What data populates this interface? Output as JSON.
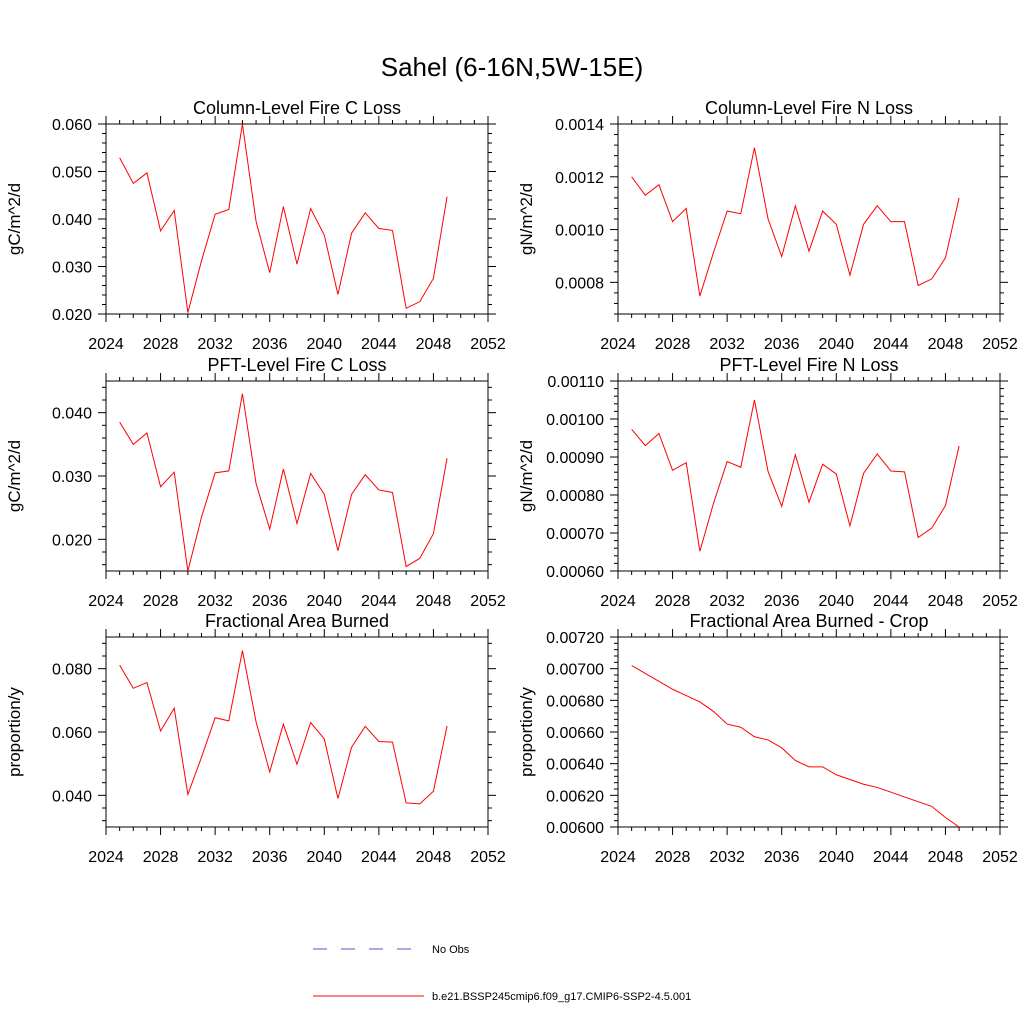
{
  "figure": {
    "title": "Sahel (6-16N,5W-15E)"
  },
  "legend": {
    "items": [
      {
        "label": "No Obs",
        "style": "dashed",
        "color": "#5555cc"
      },
      {
        "label": "b.e21.BSSP245cmip6.f09_g17.CMIP6-SSP2-4.5.001",
        "style": "solid",
        "color": "#ff0000"
      }
    ]
  },
  "chart_data": [
    {
      "type": "line",
      "title": "Column-Level Fire C Loss",
      "xlabel": "",
      "ylabel": "gC/m^2/d",
      "xlim": [
        2024,
        2052
      ],
      "ylim": [
        0.02,
        0.06
      ],
      "xticks": [
        "2024",
        "2028",
        "2032",
        "2036",
        "2040",
        "2044",
        "2048",
        "2052"
      ],
      "yticks": [
        {
          "value": 0.02,
          "label": "0.020"
        },
        {
          "value": 0.03,
          "label": "0.030"
        },
        {
          "value": 0.04,
          "label": "0.040"
        },
        {
          "value": 0.05,
          "label": "0.050"
        },
        {
          "value": 0.06,
          "label": "0.060"
        }
      ],
      "x": [
        2025,
        2026,
        2027,
        2028,
        2029,
        2030,
        2031,
        2032,
        2033,
        2034,
        2035,
        2036,
        2037,
        2038,
        2039,
        2040,
        2041,
        2042,
        2043,
        2044,
        2045,
        2046,
        2047,
        2048,
        2049
      ],
      "series": [
        {
          "color": "#ff0000",
          "values": [
            0.0529,
            0.0475,
            0.0497,
            0.0375,
            0.0418,
            0.0203,
            0.0312,
            0.041,
            0.042,
            0.06,
            0.0395,
            0.0287,
            0.0426,
            0.0305,
            0.0422,
            0.0366,
            0.0241,
            0.037,
            0.0413,
            0.038,
            0.0376,
            0.0212,
            0.0226,
            0.0275,
            0.0447
          ]
        }
      ]
    },
    {
      "type": "line",
      "title": "Column-Level Fire N Loss",
      "xlabel": "",
      "ylabel": "gN/m^2/d",
      "xlim": [
        2024,
        2052
      ],
      "ylim": [
        0.00068,
        0.0014
      ],
      "xticks": [
        "2024",
        "2028",
        "2032",
        "2036",
        "2040",
        "2044",
        "2048",
        "2052"
      ],
      "yticks": [
        {
          "value": 0.0008,
          "label": "0.0008"
        },
        {
          "value": 0.001,
          "label": "0.0010"
        },
        {
          "value": 0.0012,
          "label": "0.0012"
        },
        {
          "value": 0.0014,
          "label": "0.0014"
        }
      ],
      "x": [
        2025,
        2026,
        2027,
        2028,
        2029,
        2030,
        2031,
        2032,
        2033,
        2034,
        2035,
        2036,
        2037,
        2038,
        2039,
        2040,
        2041,
        2042,
        2043,
        2044,
        2045,
        2046,
        2047,
        2048,
        2049
      ],
      "series": [
        {
          "color": "#ff0000",
          "values": [
            0.0012,
            0.00113,
            0.00117,
            0.00103,
            0.00108,
            0.000748,
            0.000913,
            0.00107,
            0.00106,
            0.00131,
            0.00104,
            0.000898,
            0.00109,
            0.000918,
            0.00107,
            0.00102,
            0.000827,
            0.00102,
            0.00109,
            0.00103,
            0.00103,
            0.000788,
            0.000813,
            0.000893,
            0.00112
          ]
        }
      ]
    },
    {
      "type": "line",
      "title": "PFT-Level Fire C Loss",
      "xlabel": "",
      "ylabel": "gC/m^2/d",
      "xlim": [
        2024,
        2052
      ],
      "ylim": [
        0.015,
        0.045
      ],
      "xticks": [
        "2024",
        "2028",
        "2032",
        "2036",
        "2040",
        "2044",
        "2048",
        "2052"
      ],
      "yticks": [
        {
          "value": 0.02,
          "label": "0.020"
        },
        {
          "value": 0.03,
          "label": "0.030"
        },
        {
          "value": 0.04,
          "label": "0.040"
        }
      ],
      "x": [
        2025,
        2026,
        2027,
        2028,
        2029,
        2030,
        2031,
        2032,
        2033,
        2034,
        2035,
        2036,
        2037,
        2038,
        2039,
        2040,
        2041,
        2042,
        2043,
        2044,
        2045,
        2046,
        2047,
        2048,
        2049
      ],
      "series": [
        {
          "color": "#ff0000",
          "values": [
            0.0385,
            0.035,
            0.0368,
            0.0283,
            0.0306,
            0.015,
            0.0235,
            0.0305,
            0.0308,
            0.043,
            0.0288,
            0.0216,
            0.0311,
            0.0225,
            0.0304,
            0.0271,
            0.0182,
            0.0271,
            0.0302,
            0.0278,
            0.0274,
            0.0157,
            0.017,
            0.0209,
            0.0328
          ]
        }
      ]
    },
    {
      "type": "line",
      "title": "PFT-Level Fire N Loss",
      "xlabel": "",
      "ylabel": "gN/m^2/d",
      "xlim": [
        2024,
        2052
      ],
      "ylim": [
        0.0006,
        0.0011
      ],
      "xticks": [
        "2024",
        "2028",
        "2032",
        "2036",
        "2040",
        "2044",
        "2048",
        "2052"
      ],
      "yticks": [
        {
          "value": 0.0006,
          "label": "0.00060"
        },
        {
          "value": 0.0007,
          "label": "0.00070"
        },
        {
          "value": 0.0008,
          "label": "0.00080"
        },
        {
          "value": 0.0009,
          "label": "0.00090"
        },
        {
          "value": 0.001,
          "label": "0.00100"
        },
        {
          "value": 0.0011,
          "label": "0.00110"
        }
      ],
      "x": [
        2025,
        2026,
        2027,
        2028,
        2029,
        2030,
        2031,
        2032,
        2033,
        2034,
        2035,
        2036,
        2037,
        2038,
        2039,
        2040,
        2041,
        2042,
        2043,
        2044,
        2045,
        2046,
        2047,
        2048,
        2049
      ],
      "series": [
        {
          "color": "#ff0000",
          "values": [
            0.000973,
            0.00093,
            0.000962,
            0.000865,
            0.000885,
            0.000652,
            0.000778,
            0.000888,
            0.000873,
            0.00105,
            0.000862,
            0.00077,
            0.000906,
            0.000781,
            0.000881,
            0.000855,
            0.000719,
            0.000857,
            0.000908,
            0.000863,
            0.000861,
            0.000688,
            0.000713,
            0.000772,
            0.000929
          ]
        }
      ]
    },
    {
      "type": "line",
      "title": "Fractional Area Burned",
      "xlabel": "",
      "ylabel": "proportion/y",
      "xlim": [
        2024,
        2052
      ],
      "ylim": [
        0.03,
        0.09
      ],
      "xticks": [
        "2024",
        "2028",
        "2032",
        "2036",
        "2040",
        "2044",
        "2048",
        "2052"
      ],
      "yticks": [
        {
          "value": 0.04,
          "label": "0.040"
        },
        {
          "value": 0.06,
          "label": "0.060"
        },
        {
          "value": 0.08,
          "label": "0.080"
        }
      ],
      "x": [
        2025,
        2026,
        2027,
        2028,
        2029,
        2030,
        2031,
        2032,
        2033,
        2034,
        2035,
        2036,
        2037,
        2038,
        2039,
        2040,
        2041,
        2042,
        2043,
        2044,
        2045,
        2046,
        2047,
        2048,
        2049
      ],
      "series": [
        {
          "color": "#ff0000",
          "values": [
            0.0811,
            0.0738,
            0.0756,
            0.0603,
            0.0675,
            0.0403,
            0.052,
            0.0645,
            0.0635,
            0.0857,
            0.0632,
            0.0474,
            0.0625,
            0.0498,
            0.063,
            0.0578,
            0.039,
            0.0552,
            0.0618,
            0.057,
            0.0568,
            0.0376,
            0.0373,
            0.0413,
            0.0619
          ]
        }
      ]
    },
    {
      "type": "line",
      "title": "Fractional Area Burned - Crop",
      "xlabel": "",
      "ylabel": "proportion/y",
      "xlim": [
        2024,
        2052
      ],
      "ylim": [
        0.006,
        0.0072
      ],
      "xticks": [
        "2024",
        "2028",
        "2032",
        "2036",
        "2040",
        "2044",
        "2048",
        "2052"
      ],
      "yticks": [
        {
          "value": 0.006,
          "label": "0.00600"
        },
        {
          "value": 0.0062,
          "label": "0.00620"
        },
        {
          "value": 0.0064,
          "label": "0.00640"
        },
        {
          "value": 0.0066,
          "label": "0.00660"
        },
        {
          "value": 0.0068,
          "label": "0.00680"
        },
        {
          "value": 0.007,
          "label": "0.00700"
        },
        {
          "value": 0.0072,
          "label": "0.00720"
        }
      ],
      "x": [
        2025,
        2026,
        2027,
        2028,
        2029,
        2030,
        2031,
        2032,
        2033,
        2034,
        2035,
        2036,
        2037,
        2038,
        2039,
        2040,
        2041,
        2042,
        2043,
        2044,
        2045,
        2046,
        2047,
        2048,
        2049
      ],
      "series": [
        {
          "color": "#ff0000",
          "values": [
            0.00702,
            0.00697,
            0.00692,
            0.00687,
            0.00683,
            0.00679,
            0.00673,
            0.00665,
            0.00663,
            0.00657,
            0.00655,
            0.0065,
            0.00642,
            0.00638,
            0.00638,
            0.00633,
            0.0063,
            0.00627,
            0.00625,
            0.00622,
            0.00619,
            0.00616,
            0.00613,
            0.00606,
            0.006
          ]
        }
      ]
    }
  ]
}
